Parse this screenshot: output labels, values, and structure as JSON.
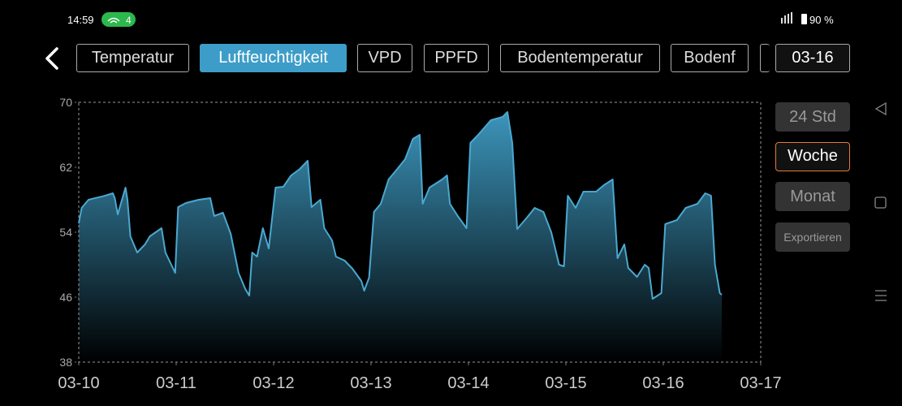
{
  "status_bar": {
    "time": "14:59",
    "hotspot_count": "4",
    "battery": "90 %"
  },
  "tabs": [
    "Temperatur",
    "Luftfeuchtigkeit",
    "VPD",
    "PPFD",
    "Bodentemperatur",
    "Bodenf"
  ],
  "date_button": "03-16",
  "range_buttons": [
    "24 Std",
    "Woche",
    "Monat"
  ],
  "export_button": "Exportieren",
  "chart_data": {
    "type": "area",
    "color": "#4aa8d0",
    "x": [
      0,
      0.03,
      0.1,
      0.27,
      0.35,
      0.37,
      0.4,
      0.48,
      0.5,
      0.53,
      0.6,
      0.68,
      0.73,
      0.85,
      0.89,
      0.95,
      0.99,
      1.02,
      1.1,
      1.23,
      1.35,
      1.39,
      1.48,
      1.56,
      1.64,
      1.71,
      1.75,
      1.78,
      1.83,
      1.89,
      1.95,
      2.02,
      2.1,
      2.18,
      2.27,
      2.35,
      2.39,
      2.48,
      2.52,
      2.6,
      2.64,
      2.73,
      2.81,
      2.9,
      2.93,
      2.98,
      3.03,
      3.1,
      3.18,
      3.27,
      3.35,
      3.43,
      3.5,
      3.53,
      3.6,
      3.73,
      3.78,
      3.81,
      3.89,
      3.98,
      4.02,
      4.1,
      4.23,
      4.35,
      4.4,
      4.45,
      4.5,
      4.6,
      4.68,
      4.77,
      4.85,
      4.93,
      4.98,
      5.02,
      5.1,
      5.18,
      5.31,
      5.39,
      5.48,
      5.53,
      5.6,
      5.64,
      5.73,
      5.81,
      5.85,
      5.89,
      5.98,
      6.02,
      6.14,
      6.23,
      6.35,
      6.43,
      6.49,
      6.53,
      6.58,
      6.6
    ],
    "values": [
      55.1,
      57,
      58,
      58.5,
      58.8,
      58.2,
      56.2,
      59.5,
      58,
      53.5,
      51.5,
      52.5,
      53.5,
      54.5,
      51.5,
      50,
      49,
      57.1,
      57.6,
      58,
      58.2,
      56,
      56.4,
      53.8,
      49,
      47,
      46.2,
      51.5,
      51,
      54.5,
      52,
      59.5,
      59.6,
      61,
      61.8,
      62.8,
      57.1,
      58,
      54.5,
      53,
      51,
      50.5,
      49.5,
      48,
      46.8,
      48.4,
      56.5,
      57.5,
      60.5,
      61.8,
      63,
      65.5,
      66,
      57.5,
      59.5,
      60.5,
      61,
      57.5,
      56,
      54.5,
      65,
      66,
      67.8,
      68.2,
      68.8,
      65,
      54.4,
      55.8,
      57,
      56.5,
      54,
      50,
      49.8,
      58.5,
      57,
      59,
      59,
      59.8,
      60.5,
      50.8,
      52.5,
      49.6,
      48.5,
      50,
      49.6,
      45.8,
      46.5,
      55,
      55.5,
      57,
      57.5,
      58.8,
      58.5,
      50,
      46.5,
      46.3
    ],
    "xlim": [
      0,
      7
    ],
    "xticks": [
      {
        "value": 0,
        "label": "03-10"
      },
      {
        "value": 1,
        "label": "03-11"
      },
      {
        "value": 2,
        "label": "03-12"
      },
      {
        "value": 3,
        "label": "03-13"
      },
      {
        "value": 4,
        "label": "03-14"
      },
      {
        "value": 5,
        "label": "03-15"
      },
      {
        "value": 6,
        "label": "03-16"
      },
      {
        "value": 7,
        "label": "03-17"
      }
    ],
    "ylim": [
      38,
      70
    ],
    "yticks": [
      38,
      46,
      54,
      62,
      70
    ]
  }
}
